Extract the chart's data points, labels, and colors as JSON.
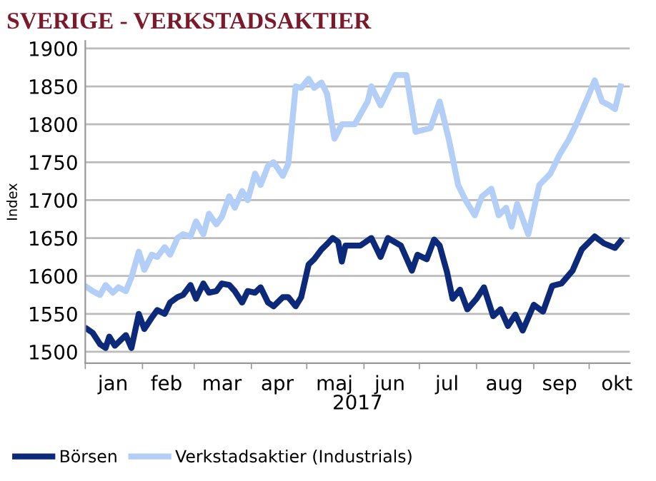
{
  "chart_data": {
    "type": "line",
    "title": "SVERIGE - VERKSTADSAKTIER",
    "xlabel": "2017",
    "ylabel": "Index",
    "xlim": [
      "2017-01-01",
      "2017-10-23"
    ],
    "xticks": [
      {
        "value": "2017-01-01",
        "label": null
      },
      {
        "value": "2017-01-16",
        "label": "jan"
      },
      {
        "value": "2017-02-01",
        "label": null
      },
      {
        "value": "2017-02-14",
        "label": "feb"
      },
      {
        "value": "2017-03-01",
        "label": null
      },
      {
        "value": "2017-03-16",
        "label": "mar"
      },
      {
        "value": "2017-04-01",
        "label": null
      },
      {
        "value": "2017-04-15",
        "label": "apr"
      },
      {
        "value": "2017-05-01",
        "label": null
      },
      {
        "value": "2017-05-16",
        "label": "maj"
      },
      {
        "value": "2017-06-01",
        "label": null
      },
      {
        "value": "2017-06-15",
        "label": "jun"
      },
      {
        "value": "2017-07-01",
        "label": null
      },
      {
        "value": "2017-07-16",
        "label": "jul"
      },
      {
        "value": "2017-08-01",
        "label": null
      },
      {
        "value": "2017-08-16",
        "label": "aug"
      },
      {
        "value": "2017-09-01",
        "label": null
      },
      {
        "value": "2017-09-15",
        "label": "sep"
      },
      {
        "value": "2017-10-01",
        "label": null
      },
      {
        "value": "2017-10-16",
        "label": "okt"
      }
    ],
    "ylim": [
      1485,
      1910
    ],
    "yticks": [
      1500,
      1550,
      1600,
      1650,
      1700,
      1750,
      1800,
      1850,
      1900
    ],
    "grid": "y",
    "legend": "bottom",
    "line_style": "solid",
    "marker": "none",
    "series": [
      {
        "name": "Börsen",
        "color": "#0d2a7a",
        "x": [
          "2017-01-02",
          "2017-01-05",
          "2017-01-09",
          "2017-01-12",
          "2017-01-14",
          "2017-01-17",
          "2017-01-20",
          "2017-01-23",
          "2017-01-26",
          "2017-01-30",
          "2017-02-02",
          "2017-02-06",
          "2017-02-09",
          "2017-02-13",
          "2017-02-16",
          "2017-02-20",
          "2017-02-23",
          "2017-02-27",
          "2017-03-02",
          "2017-03-06",
          "2017-03-09",
          "2017-03-13",
          "2017-03-16",
          "2017-03-20",
          "2017-03-23",
          "2017-03-27",
          "2017-03-30",
          "2017-04-03",
          "2017-04-06",
          "2017-04-10",
          "2017-04-13",
          "2017-04-18",
          "2017-04-21",
          "2017-04-25",
          "2017-04-28",
          "2017-05-02",
          "2017-05-05",
          "2017-05-09",
          "2017-05-12",
          "2017-05-15",
          "2017-05-18",
          "2017-05-20",
          "2017-05-22",
          "2017-05-30",
          "2017-06-05",
          "2017-06-10",
          "2017-06-14",
          "2017-06-21",
          "2017-06-27",
          "2017-06-30",
          "2017-07-05",
          "2017-07-09",
          "2017-07-12",
          "2017-07-16",
          "2017-07-19",
          "2017-07-23",
          "2017-07-27",
          "2017-08-01",
          "2017-08-05",
          "2017-08-10",
          "2017-08-14",
          "2017-08-18",
          "2017-08-22",
          "2017-08-26",
          "2017-09-01",
          "2017-09-06",
          "2017-09-11",
          "2017-09-16",
          "2017-09-22",
          "2017-09-27",
          "2017-10-04",
          "2017-10-09",
          "2017-10-15",
          "2017-10-18"
        ],
        "values": [
          1530,
          1525,
          1510,
          1505,
          1520,
          1508,
          1515,
          1522,
          1505,
          1550,
          1530,
          1545,
          1555,
          1550,
          1565,
          1572,
          1575,
          1588,
          1570,
          1590,
          1578,
          1580,
          1590,
          1588,
          1580,
          1565,
          1580,
          1578,
          1585,
          1565,
          1560,
          1572,
          1572,
          1560,
          1572,
          1615,
          1622,
          1635,
          1642,
          1650,
          1645,
          1619,
          1640,
          1640,
          1650,
          1625,
          1650,
          1640,
          1607,
          1628,
          1622,
          1648,
          1640,
          1605,
          1570,
          1582,
          1556,
          1570,
          1585,
          1547,
          1556,
          1534,
          1549,
          1528,
          1562,
          1553,
          1587,
          1590,
          1607,
          1635,
          1652,
          1643,
          1637,
          1646
        ]
      },
      {
        "name": "Verkstadsaktier (Industrials)",
        "color": "#b4cff7",
        "x": [
          "2017-01-02",
          "2017-01-05",
          "2017-01-09",
          "2017-01-12",
          "2017-01-16",
          "2017-01-19",
          "2017-01-23",
          "2017-01-26",
          "2017-01-30",
          "2017-02-02",
          "2017-02-06",
          "2017-02-09",
          "2017-02-13",
          "2017-02-16",
          "2017-02-20",
          "2017-02-23",
          "2017-02-27",
          "2017-03-02",
          "2017-03-06",
          "2017-03-09",
          "2017-03-13",
          "2017-03-16",
          "2017-03-20",
          "2017-03-23",
          "2017-03-27",
          "2017-03-30",
          "2017-04-03",
          "2017-04-06",
          "2017-04-10",
          "2017-04-13",
          "2017-04-18",
          "2017-04-21",
          "2017-04-25",
          "2017-04-28",
          "2017-05-02",
          "2017-05-05",
          "2017-05-09",
          "2017-05-12",
          "2017-05-16",
          "2017-05-20",
          "2017-05-27",
          "2017-06-03",
          "2017-06-05",
          "2017-06-10",
          "2017-06-18",
          "2017-06-24",
          "2017-06-29",
          "2017-07-07",
          "2017-07-12",
          "2017-07-17",
          "2017-07-22",
          "2017-07-26",
          "2017-07-31",
          "2017-08-04",
          "2017-08-09",
          "2017-08-13",
          "2017-08-17",
          "2017-08-20",
          "2017-08-23",
          "2017-08-29",
          "2017-09-04",
          "2017-09-10",
          "2017-09-15",
          "2017-09-20",
          "2017-09-24",
          "2017-10-01",
          "2017-10-04",
          "2017-10-08",
          "2017-10-12",
          "2017-10-15",
          "2017-10-18"
        ],
        "values": [
          1585,
          1580,
          1575,
          1588,
          1578,
          1585,
          1580,
          1598,
          1632,
          1608,
          1628,
          1625,
          1638,
          1628,
          1650,
          1655,
          1652,
          1672,
          1655,
          1682,
          1668,
          1678,
          1705,
          1690,
          1712,
          1700,
          1735,
          1720,
          1745,
          1750,
          1732,
          1748,
          1850,
          1848,
          1860,
          1848,
          1855,
          1840,
          1781,
          1800,
          1800,
          1830,
          1850,
          1825,
          1865,
          1865,
          1790,
          1795,
          1830,
          1780,
          1720,
          1700,
          1680,
          1705,
          1715,
          1680,
          1690,
          1665,
          1695,
          1655,
          1720,
          1735,
          1760,
          1780,
          1800,
          1840,
          1858,
          1830,
          1825,
          1820,
          1850
        ]
      }
    ]
  }
}
